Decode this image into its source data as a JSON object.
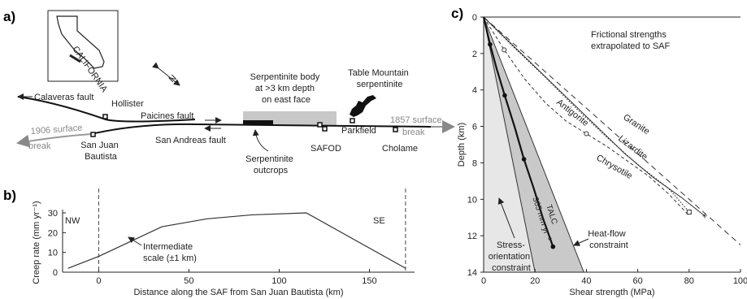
{
  "panel_a": {
    "label": "a)",
    "inset_state": "CALIFORNIA",
    "north": "N",
    "faults": {
      "calaveras": "Calaveras fault",
      "paicines": "Paicines fault",
      "san_andreas": "San Andreas fault"
    },
    "places": {
      "hollister": "Hollister",
      "san_juan_1": "San Juan",
      "san_juan_2": "Bautista",
      "parkfield": "Parkfield",
      "cholame": "Cholame",
      "safod": "SAFOD"
    },
    "surfaces": {
      "s1906": "1906 surface",
      "s1906_break": "break",
      "s1857": "1857 surface",
      "s1857_break": "break"
    },
    "serpentinite_body": [
      "Serpentinite body",
      "at >3 km depth",
      "on east face"
    ],
    "table_mountain": [
      "Table Mountain",
      "serpentinite"
    ],
    "outcrops": [
      "Serpentinite",
      "outcrops"
    ]
  },
  "panel_b": {
    "label": "b)",
    "nw": "NW",
    "se": "SE",
    "annotation": [
      "Intermediate",
      "scale (±1 km)"
    ]
  },
  "panel_c": {
    "label": "c)",
    "note": [
      "Frictional strengths",
      "extrapolated to SAF"
    ],
    "curve_labels": {
      "granite": "Granite",
      "lizardite": "Lizardite",
      "antigorite": "Antigorite",
      "chrysotile": "Chrysotile",
      "talc_1": "TALC",
      "talc_2": "365 mm yr⁻¹"
    },
    "constraints": {
      "stress_1": "Stress-",
      "stress_2": "orientation",
      "stress_3": "constraint",
      "heat_1": "Heat-flow",
      "heat_2": "constraint"
    }
  },
  "chart_data": [
    {
      "type": "line",
      "xlabel": "Distance along the SAF from San Juan Bautista (km)",
      "ylabel": "Creep rate (mm yr⁻¹)",
      "xlim": [
        -20,
        175
      ],
      "ylim": [
        0,
        30
      ],
      "xticks": [
        0,
        50,
        100,
        150
      ],
      "yticks": [
        0,
        10,
        20,
        30
      ],
      "series": [
        {
          "x": [
            -17,
            0,
            35,
            60,
            85,
            115,
            170
          ],
          "y": [
            2,
            8,
            23,
            27,
            29,
            30,
            2
          ]
        }
      ],
      "vlines": [
        0,
        170
      ]
    },
    {
      "type": "line",
      "xlabel": "Shear strength (MPa)",
      "ylabel": "Depth (km)",
      "xlim": [
        0,
        100
      ],
      "ylim": [
        14,
        0
      ],
      "xticks": [
        0,
        20,
        40,
        60,
        80,
        100
      ],
      "yticks": [
        0,
        2,
        4,
        6,
        8,
        10,
        12,
        14
      ],
      "series": [
        {
          "key": "granite",
          "style": "dashed",
          "x": [
            0,
            100
          ],
          "y": [
            0,
            12.5
          ]
        },
        {
          "key": "lizardite",
          "style": "solid",
          "x": [
            0,
            11,
            22,
            33,
            44,
            55,
            66,
            77,
            86
          ],
          "y": [
            0,
            1.5,
            3.0,
            4.5,
            6.0,
            7.5,
            8.8,
            9.9,
            10.9
          ]
        },
        {
          "key": "antigorite",
          "style": "dotted",
          "x": [
            0,
            12,
            24,
            36,
            48,
            60,
            72,
            80
          ],
          "y": [
            0,
            1.7,
            3.3,
            5.0,
            6.6,
            8.1,
            9.4,
            10.7
          ]
        },
        {
          "key": "chrysotile",
          "style": "dashed-fine",
          "x": [
            0,
            8,
            16,
            24,
            32,
            40,
            48,
            56,
            64,
            72,
            80
          ],
          "y": [
            0,
            1.8,
            3.4,
            4.7,
            5.7,
            6.4,
            7.1,
            7.9,
            8.7,
            9.7,
            10.9
          ]
        },
        {
          "key": "talc",
          "style": "bold",
          "x": [
            0,
            2.5,
            5,
            8.2,
            12,
            15.7,
            19.5,
            23,
            27
          ],
          "y": [
            0,
            1.5,
            2.8,
            4.3,
            6.0,
            7.8,
            9.4,
            11.0,
            12.6
          ]
        }
      ],
      "bands": [
        {
          "key": "stress",
          "x_top": 0,
          "x_bottom": 20,
          "y_bottom": 14
        },
        {
          "key": "heat",
          "x_top": 0,
          "x_bottom": 39,
          "y_bottom": 14
        }
      ]
    }
  ]
}
